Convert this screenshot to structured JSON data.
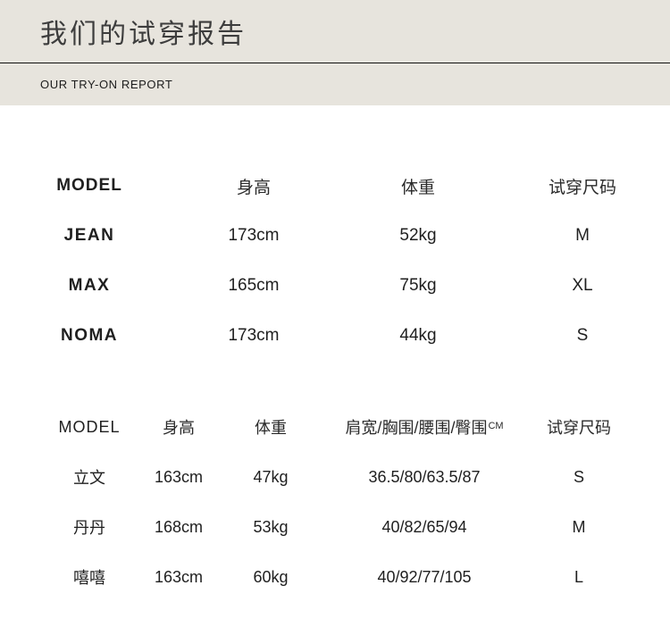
{
  "header": {
    "title": "我们的试穿报告",
    "subtitle": "OUR TRY-ON REPORT"
  },
  "colors": {
    "header_bg": "#e7e4dd",
    "divider_line": "#111111",
    "title_text": "#3d3d3d",
    "body_text": "#1f1f1f"
  },
  "table_basic": {
    "columns": [
      "MODEL",
      "身高",
      "体重",
      "试穿尺码"
    ],
    "rows": [
      {
        "model": "JEAN",
        "height": "173cm",
        "weight": "52kg",
        "size": "M"
      },
      {
        "model": "MAX",
        "height": "165cm",
        "weight": "75kg",
        "size": "XL"
      },
      {
        "model": "NOMA",
        "height": "173cm",
        "weight": "44kg",
        "size": "S"
      }
    ]
  },
  "table_detail": {
    "columns": [
      "MODEL",
      "身高",
      "体重",
      "肩宽/胸围/腰围/臀围",
      "试穿尺码"
    ],
    "measure_unit": "CM",
    "rows": [
      {
        "model": "立文",
        "height": "163cm",
        "weight": "47kg",
        "measurements": "36.5/80/63.5/87",
        "size": "S"
      },
      {
        "model": "丹丹",
        "height": "168cm",
        "weight": "53kg",
        "measurements": "40/82/65/94",
        "size": "M"
      },
      {
        "model": "嘻嘻",
        "height": "163cm",
        "weight": "60kg",
        "measurements": "40/92/77/105",
        "size": "L"
      }
    ]
  }
}
